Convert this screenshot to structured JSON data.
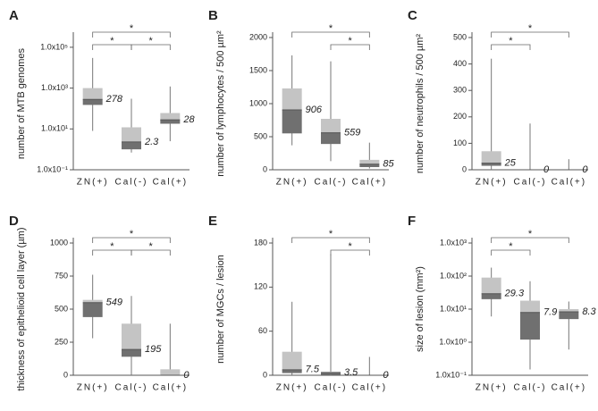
{
  "chart_data": [
    {
      "type": "box",
      "panel": "A",
      "ylabel": "number of MTB genomes",
      "log": true,
      "categories": [
        "ZN(+)",
        "Cal(-)",
        "Cal(+)"
      ],
      "boxes": [
        {
          "min": 8,
          "q1": 150,
          "median": 278,
          "q3": 1000,
          "max": 30000
        },
        {
          "min": 0.7,
          "q1": 1,
          "median": 2.3,
          "q3": 12,
          "max": 300
        },
        {
          "min": 2.5,
          "q1": 18,
          "median": 28,
          "q3": 60,
          "max": 1200
        }
      ],
      "ylim": [
        0.1,
        300000
      ],
      "yticks": [
        {
          "value": 0.1,
          "label": "1.0x10⁻¹"
        },
        {
          "value": 10,
          "label": "1.0x10¹"
        },
        {
          "value": 1000,
          "label": "1.0x10³"
        },
        {
          "value": 100000,
          "label": "1.0x10⁵"
        }
      ],
      "significance": [
        {
          "pair": [
            "ZN(+)",
            "Cal(+)"
          ],
          "label": "*"
        },
        {
          "pair": [
            "ZN(+)",
            "Cal(-)"
          ],
          "label": "*"
        },
        {
          "pair": [
            "Cal(-)",
            "Cal(+)"
          ],
          "label": "*"
        }
      ],
      "colors": {
        "upper": "#c4c4c4",
        "lower": "#707070"
      }
    },
    {
      "type": "box",
      "panel": "B",
      "ylabel": "number of lymphocytes / 500 µm²",
      "log": false,
      "categories": [
        "ZN(+)",
        "Cal(-)",
        "Cal(+)"
      ],
      "boxes": [
        {
          "min": 370,
          "q1": 550,
          "median": 906,
          "q3": 1230,
          "max": 1730
        },
        {
          "min": 130,
          "q1": 390,
          "median": 559,
          "q3": 770,
          "max": 1640
        },
        {
          "min": 20,
          "q1": 40,
          "median": 85,
          "q3": 150,
          "max": 410
        }
      ],
      "ylim": [
        0,
        2000
      ],
      "yticks": [
        0,
        500,
        1000,
        1500,
        2000
      ],
      "significance": [
        {
          "pair": [
            "ZN(+)",
            "Cal(+)"
          ],
          "label": "*"
        },
        {
          "pair": [
            "Cal(-)",
            "Cal(+)"
          ],
          "label": "*"
        }
      ],
      "colors": {
        "upper": "#c4c4c4",
        "lower": "#707070"
      }
    },
    {
      "type": "box",
      "panel": "C",
      "ylabel": "number of neutrophils / 500 µm²",
      "log": false,
      "categories": [
        "ZN(+)",
        "Cal(-)",
        "Cal(+)"
      ],
      "boxes": [
        {
          "min": 0,
          "q1": 15,
          "median": 25,
          "q3": 70,
          "max": 420
        },
        {
          "min": 0,
          "q1": 0,
          "median": 0,
          "q3": 0,
          "max": 175
        },
        {
          "min": 0,
          "q1": 0,
          "median": 0,
          "q3": 0,
          "max": 40
        }
      ],
      "ylim": [
        0,
        500
      ],
      "yticks": [
        0,
        100,
        200,
        300,
        400,
        500
      ],
      "significance": [
        {
          "pair": [
            "ZN(+)",
            "Cal(+)"
          ],
          "label": "*"
        },
        {
          "pair": [
            "ZN(+)",
            "Cal(-)"
          ],
          "label": "*"
        }
      ],
      "colors": {
        "upper": "#c4c4c4",
        "lower": "#707070"
      }
    },
    {
      "type": "box",
      "panel": "D",
      "ylabel": "thickness of epithelioid cell layer (µm)",
      "log": false,
      "categories": [
        "ZN(+)",
        "Cal(-)",
        "Cal(+)"
      ],
      "boxes": [
        {
          "min": 280,
          "q1": 440,
          "median": 549,
          "q3": 570,
          "max": 760
        },
        {
          "min": 0,
          "q1": 140,
          "median": 195,
          "q3": 390,
          "max": 600
        },
        {
          "min": 0,
          "q1": 0,
          "median": 0,
          "q3": 45,
          "max": 390
        }
      ],
      "ylim": [
        0,
        1000
      ],
      "yticks": [
        0,
        250,
        500,
        750,
        1000
      ],
      "significance": [
        {
          "pair": [
            "ZN(+)",
            "Cal(+)"
          ],
          "label": "*"
        },
        {
          "pair": [
            "ZN(+)",
            "Cal(-)"
          ],
          "label": "*"
        },
        {
          "pair": [
            "Cal(-)",
            "Cal(+)"
          ],
          "label": "*"
        }
      ],
      "colors": {
        "upper": "#c4c4c4",
        "lower": "#707070"
      }
    },
    {
      "type": "box",
      "panel": "E",
      "ylabel": "number of MGCs / lesion",
      "log": false,
      "categories": [
        "ZN(+)",
        "Cal(-)",
        "Cal(+)"
      ],
      "boxes": [
        {
          "min": 0,
          "q1": 3,
          "median": 7.5,
          "q3": 32,
          "max": 100
        },
        {
          "min": 0,
          "q1": 0.5,
          "median": 3.5,
          "q3": 5,
          "max": 165
        },
        {
          "min": 0,
          "q1": 0,
          "median": 0,
          "q3": 0,
          "max": 25
        }
      ],
      "ylim": [
        0,
        180
      ],
      "yticks": [
        0,
        60,
        120,
        180
      ],
      "significance": [
        {
          "pair": [
            "ZN(+)",
            "Cal(+)"
          ],
          "label": "*"
        },
        {
          "pair": [
            "Cal(-)",
            "Cal(+)"
          ],
          "label": "*"
        }
      ],
      "colors": {
        "upper": "#c4c4c4",
        "lower": "#707070"
      }
    },
    {
      "type": "box",
      "panel": "F",
      "ylabel": "size of lesion (mm²)",
      "log": true,
      "categories": [
        "ZN(+)",
        "Cal(-)",
        "Cal(+)"
      ],
      "boxes": [
        {
          "min": 6,
          "q1": 20,
          "median": 29.3,
          "q3": 90,
          "max": 180
        },
        {
          "min": 0.15,
          "q1": 1.2,
          "median": 7.9,
          "q3": 18,
          "max": 70
        },
        {
          "min": 0.6,
          "q1": 5,
          "median": 8.3,
          "q3": 10,
          "max": 17
        }
      ],
      "ylim": [
        0.1,
        1000
      ],
      "yticks": [
        {
          "value": 0.1,
          "label": "1.0x10⁻¹"
        },
        {
          "value": 1,
          "label": "1.0x10⁰"
        },
        {
          "value": 10,
          "label": "1.0x10¹"
        },
        {
          "value": 100,
          "label": "1.0x10²"
        },
        {
          "value": 1000,
          "label": "1.0x10³"
        }
      ],
      "significance": [
        {
          "pair": [
            "ZN(+)",
            "Cal(+)"
          ],
          "label": "*"
        },
        {
          "pair": [
            "ZN(+)",
            "Cal(-)"
          ],
          "label": "*"
        }
      ],
      "colors": {
        "upper": "#c4c4c4",
        "lower": "#707070"
      }
    }
  ]
}
